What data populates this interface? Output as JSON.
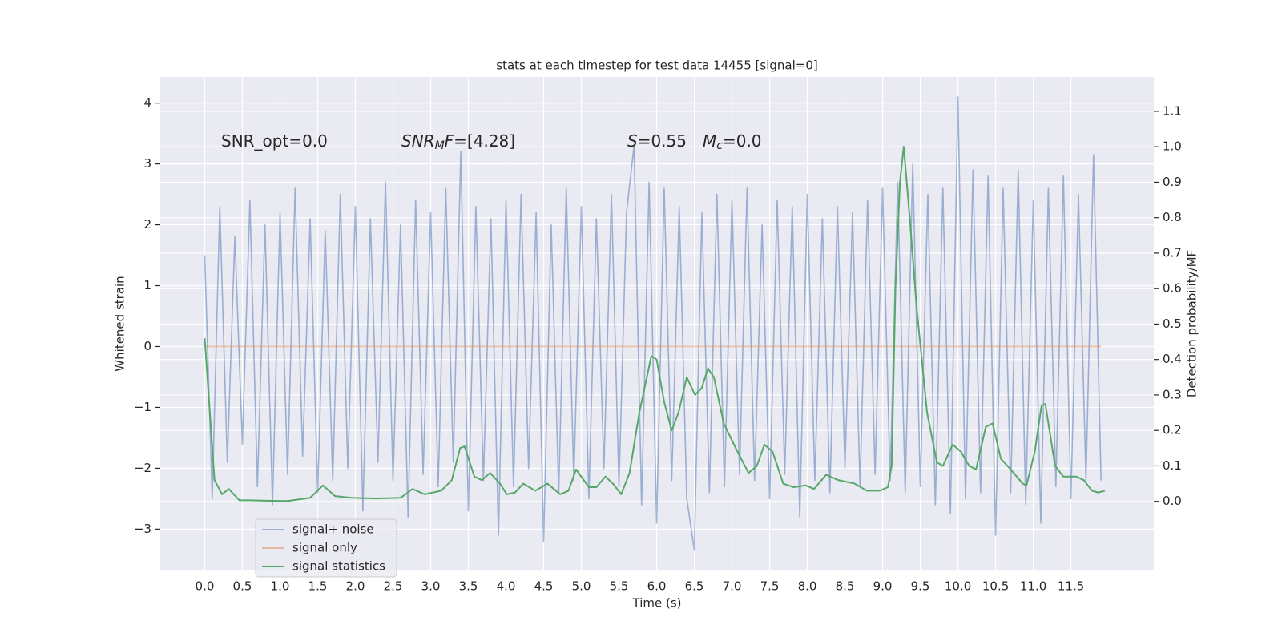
{
  "chart_data": {
    "type": "line",
    "title": "stats at each timestep for test data 14455 [signal=0]",
    "xlabel": "Time (s)",
    "ylabel": "Whitened strain",
    "y2label": "Detection probability/MF",
    "xlim": [
      -0.59,
      12.6
    ],
    "ylim": [
      -3.68,
      4.43
    ],
    "y2lim": [
      -0.195,
      1.197
    ],
    "xticks": [
      {
        "value": 0,
        "label": "0.0"
      },
      0.5,
      {
        "value": 1,
        "label": "1.0"
      },
      1.5,
      {
        "value": 2,
        "label": "2.0"
      },
      2.5,
      {
        "value": 3,
        "label": "3.0"
      },
      3.5,
      {
        "value": 4,
        "label": "4.0"
      },
      4.5,
      {
        "value": 5,
        "label": "5.0"
      },
      5.5,
      {
        "value": 6,
        "label": "6.0"
      },
      6.5,
      {
        "value": 7,
        "label": "7.0"
      },
      7.5,
      {
        "value": 8,
        "label": "8.0"
      },
      8.5,
      {
        "value": 9,
        "label": "9.0"
      },
      9.5,
      {
        "value": 10,
        "label": "10.0"
      },
      10.5,
      {
        "value": 11,
        "label": "11.0"
      },
      11.5
    ],
    "yticks": [
      {
        "value": -3,
        "label": "−3"
      },
      {
        "value": -2,
        "label": "−2"
      },
      {
        "value": -1,
        "label": "−1"
      },
      0,
      1,
      2,
      3,
      4
    ],
    "y2ticks": [
      {
        "value": 0,
        "label": "0.0"
      },
      0.1,
      0.2,
      0.3,
      0.4,
      0.5,
      0.6,
      0.7,
      0.8,
      0.9,
      {
        "value": 1,
        "label": "1.0"
      },
      1.1
    ],
    "grid": true,
    "legend": "lower left",
    "annotations": [
      [
        {
          "text": "SNR_opt=0.0"
        }
      ],
      [
        {
          "text": "SNR",
          "italic": true
        },
        {
          "text": "M",
          "italic": true,
          "sub": true
        },
        {
          "text": "F",
          "italic": true
        },
        {
          "text": "=[4.28]"
        }
      ],
      [
        {
          "text": "S",
          "italic": true
        },
        {
          "text": "=0.55"
        }
      ],
      [
        {
          "text": "M",
          "italic": true
        },
        {
          "text": "c",
          "italic": true,
          "sub": true
        },
        {
          "text": "=0.0"
        }
      ]
    ],
    "x": [
      0,
      0.1,
      0.2,
      0.3,
      0.4,
      0.5,
      0.6,
      0.7,
      0.8,
      0.9,
      1,
      1.1,
      1.2,
      1.3,
      1.4,
      1.5,
      1.6,
      1.7,
      1.8,
      1.9,
      2,
      2.1,
      2.2,
      2.3,
      2.4,
      2.5,
      2.6,
      2.7,
      2.8,
      2.9,
      3,
      3.1,
      3.2,
      3.3,
      3.4,
      3.5,
      3.6,
      3.7,
      3.8,
      3.9,
      4,
      4.1,
      4.2,
      4.3,
      4.4,
      4.5,
      4.6,
      4.7,
      4.8,
      4.9,
      5,
      5.1,
      5.2,
      5.3,
      5.4,
      5.5,
      5.6,
      5.7,
      5.8,
      5.9,
      6,
      6.1,
      6.2,
      6.3,
      6.4,
      6.5,
      6.6,
      6.7,
      6.8,
      6.9,
      7,
      7.1,
      7.2,
      7.3,
      7.4,
      7.5,
      7.6,
      7.7,
      7.8,
      7.9,
      8,
      8.1,
      8.2,
      8.3,
      8.4,
      8.5,
      8.6,
      8.7,
      8.8,
      8.9,
      9,
      9.1,
      9.2,
      9.3,
      9.4,
      9.5,
      9.6,
      9.7,
      9.8,
      9.9,
      10,
      10.1,
      10.2,
      10.3,
      10.4,
      10.5,
      10.6,
      10.7,
      10.8,
      10.9,
      11,
      11.1,
      11.2,
      11.3,
      11.4,
      11.5,
      11.6,
      11.7,
      11.8,
      11.9
    ],
    "series": [
      {
        "name": "signal+ noise",
        "color": "#4c72b0",
        "alpha": 0.5,
        "values": [
          1.5,
          -2.5,
          2.3,
          -1.9,
          1.8,
          -1.6,
          2.4,
          -2.3,
          2.0,
          -2.6,
          2.2,
          -2.1,
          2.6,
          -1.8,
          2.1,
          -2.4,
          1.9,
          -2.2,
          2.5,
          -2.0,
          2.3,
          -2.7,
          2.1,
          -1.9,
          2.7,
          -2.2,
          2.0,
          -2.8,
          2.4,
          -2.1,
          2.2,
          -2.3,
          2.6,
          -1.9,
          3.2,
          -2.7,
          2.3,
          -2.2,
          2.1,
          -3.1,
          2.4,
          -2.3,
          2.5,
          -2.0,
          2.2,
          -3.2,
          2.0,
          -2.4,
          2.6,
          -2.2,
          2.3,
          -2.5,
          2.1,
          -2.0,
          2.5,
          -2.3,
          2.2,
          3.3,
          -2.6,
          2.7,
          -2.9,
          2.6,
          -2.2,
          2.3,
          -2.5,
          -3.35,
          2.2,
          -2.4,
          2.5,
          -2.3,
          2.4,
          -2.1,
          2.6,
          -2.2,
          2.0,
          -2.5,
          2.4,
          -2.1,
          2.3,
          -2.8,
          2.5,
          -2.2,
          2.1,
          -2.4,
          2.3,
          -2.0,
          2.2,
          -2.3,
          2.4,
          -2.1,
          2.6,
          -2.2,
          2.7,
          -2.4,
          3.0,
          -2.3,
          2.5,
          -2.6,
          2.6,
          -2.75,
          4.1,
          -2.5,
          2.9,
          -2.4,
          2.8,
          -3.1,
          2.6,
          -2.4,
          2.9,
          -2.6,
          2.4,
          -2.9,
          2.6,
          -2.3,
          2.8,
          -2.5,
          2.5,
          -2.2,
          3.15,
          -2.2
        ]
      },
      {
        "name": "signal only",
        "color": "#dd8452",
        "alpha": 0.5,
        "values": [
          0,
          0,
          0,
          0,
          0,
          0,
          0,
          0,
          0,
          0,
          0,
          0,
          0,
          0,
          0,
          0,
          0,
          0,
          0,
          0,
          0,
          0,
          0,
          0,
          0,
          0,
          0,
          0,
          0,
          0,
          0,
          0,
          0,
          0,
          0,
          0,
          0,
          0,
          0,
          0,
          0,
          0,
          0,
          0,
          0,
          0,
          0,
          0,
          0,
          0,
          0,
          0,
          0,
          0,
          0,
          0,
          0,
          0,
          0,
          0,
          0,
          0,
          0,
          0,
          0,
          0,
          0,
          0,
          0,
          0,
          0,
          0,
          0,
          0,
          0,
          0,
          0,
          0,
          0,
          0,
          0,
          0,
          0,
          0,
          0,
          0,
          0,
          0,
          0,
          0,
          0,
          0,
          0,
          0,
          0,
          0,
          0,
          0,
          0,
          0,
          0,
          0,
          0,
          0,
          0,
          0,
          0,
          0,
          0,
          0,
          0,
          0,
          0,
          0,
          0,
          0,
          0,
          0,
          0,
          0
        ]
      },
      {
        "name": "signal statistics",
        "color": "#55a868",
        "alpha": 1,
        "axis": "y2",
        "x": [
          0,
          0.13,
          0.23,
          0.32,
          0.46,
          0.6,
          0.8,
          1.1,
          1.4,
          1.57,
          1.73,
          1.95,
          2.27,
          2.6,
          2.76,
          2.92,
          3.14,
          3.28,
          3.39,
          3.45,
          3.58,
          3.68,
          3.79,
          3.92,
          4.01,
          4.12,
          4.23,
          4.39,
          4.55,
          4.72,
          4.83,
          4.93,
          5.1,
          5.2,
          5.32,
          5.42,
          5.53,
          5.64,
          5.77,
          5.93,
          6.0,
          6.1,
          6.2,
          6.29,
          6.4,
          6.51,
          6.6,
          6.68,
          6.76,
          6.89,
          7.05,
          7.22,
          7.33,
          7.43,
          7.54,
          7.68,
          7.82,
          7.98,
          8.09,
          8.25,
          8.41,
          8.63,
          8.79,
          8.96,
          9.07,
          9.12,
          9.17,
          9.23,
          9.28,
          9.36,
          9.45,
          9.59,
          9.72,
          9.8,
          9.93,
          10.04,
          10.15,
          10.24,
          10.37,
          10.46,
          10.57,
          10.7,
          10.86,
          10.91,
          11.02,
          11.11,
          11.16,
          11.29,
          11.4,
          11.57,
          11.67,
          11.78,
          11.86,
          11.95
        ],
        "values": [
          0.46,
          0.06,
          0.02,
          0.035,
          0.003,
          0.003,
          0.002,
          0.001,
          0.01,
          0.045,
          0.015,
          0.01,
          0.008,
          0.01,
          0.035,
          0.02,
          0.03,
          0.06,
          0.15,
          0.155,
          0.07,
          0.06,
          0.08,
          0.05,
          0.02,
          0.025,
          0.05,
          0.03,
          0.05,
          0.02,
          0.03,
          0.09,
          0.04,
          0.04,
          0.07,
          0.05,
          0.02,
          0.08,
          0.25,
          0.41,
          0.4,
          0.28,
          0.2,
          0.25,
          0.35,
          0.3,
          0.32,
          0.375,
          0.35,
          0.22,
          0.15,
          0.08,
          0.1,
          0.16,
          0.14,
          0.05,
          0.04,
          0.045,
          0.035,
          0.075,
          0.06,
          0.05,
          0.03,
          0.03,
          0.04,
          0.1,
          0.6,
          0.9,
          1.0,
          0.8,
          0.55,
          0.25,
          0.11,
          0.1,
          0.16,
          0.14,
          0.1,
          0.09,
          0.21,
          0.22,
          0.12,
          0.09,
          0.05,
          0.045,
          0.14,
          0.27,
          0.275,
          0.1,
          0.07,
          0.07,
          0.06,
          0.03,
          0.025,
          0.03
        ]
      }
    ]
  }
}
